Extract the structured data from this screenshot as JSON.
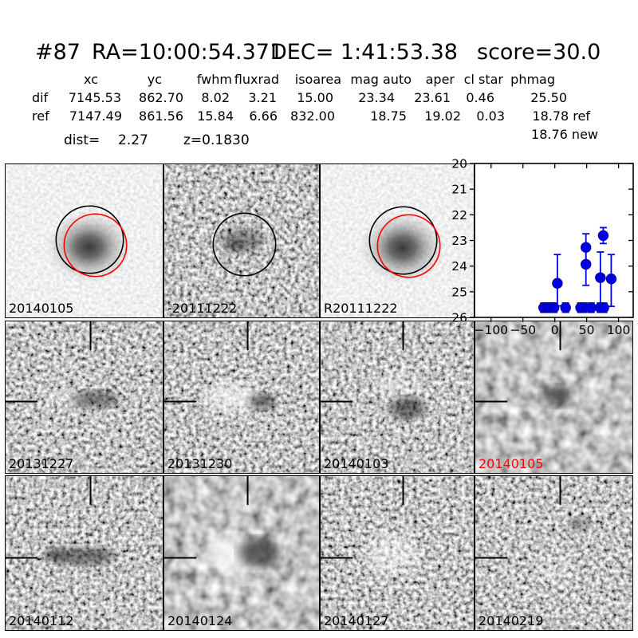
{
  "title": {
    "id": "#87",
    "ra": "RA=10:00:54.371",
    "dec": "DEC= 1:41:53.38",
    "score": "score=30.0"
  },
  "measurements": {
    "columns": [
      "xc",
      "yc",
      "fwhm",
      "fluxrad",
      "isoarea",
      "mag auto",
      "aper",
      "cl star",
      "phmag"
    ],
    "dif": {
      "label": "dif",
      "values": [
        "7145.53",
        "862.70",
        "8.02",
        "3.21",
        "15.00",
        "23.34",
        "23.61",
        "0.46",
        "25.50"
      ]
    },
    "ref": {
      "label": "ref",
      "values": [
        "7147.49",
        "861.56",
        "15.84",
        "6.66",
        "832.00",
        "18.75",
        "19.02",
        "0.03",
        "18.78 ref"
      ]
    },
    "phmag_new": "18.76 new",
    "dist_label": "dist=",
    "dist_value": "2.27",
    "redshift": "z=0.1830"
  },
  "grid": {
    "images": [
      {
        "label": "20140105",
        "label_color": "#000000",
        "kind": "new stamp with aperture circles"
      },
      {
        "label": "-20111222",
        "label_color": "#000000",
        "kind": "difference stamp with circle"
      },
      {
        "label": "R20111222",
        "label_color": "#000000",
        "kind": "reference stamp with aperture circles"
      },
      {
        "label": "20131227",
        "label_color": "#000000",
        "kind": "difference epoch stamp"
      },
      {
        "label": "20131230",
        "label_color": "#000000",
        "kind": "difference epoch stamp"
      },
      {
        "label": "20140103",
        "label_color": "#000000",
        "kind": "difference epoch stamp"
      },
      {
        "label": "20140105",
        "label_color": "#ff0000",
        "kind": "difference epoch stamp (selected)"
      },
      {
        "label": "20140112",
        "label_color": "#000000",
        "kind": "difference epoch stamp"
      },
      {
        "label": "20140124",
        "label_color": "#000000",
        "kind": "difference epoch stamp"
      },
      {
        "label": "20140127",
        "label_color": "#000000",
        "kind": "difference epoch stamp"
      },
      {
        "label": "20140219",
        "label_color": "#000000",
        "kind": "difference epoch stamp"
      }
    ],
    "circle_colors": {
      "aperture_black": "#000000",
      "aperture_red": "#ff0000"
    }
  },
  "chart_data": {
    "type": "scatter",
    "title": "",
    "xlabel": "",
    "ylabel": "",
    "legend": "none",
    "grid": "off",
    "xlim": [
      -126,
      123
    ],
    "ylim": [
      20,
      26
    ],
    "y_axis_inverted_display": "20 at top, 26 at bottom (magnitudes)",
    "xticks": [
      -100,
      -50,
      0,
      50,
      100
    ],
    "xtick_labels": [
      "−100",
      "−50",
      "0",
      "50",
      "100"
    ],
    "yticks": [
      20,
      21,
      22,
      23,
      24,
      25,
      26
    ],
    "ytick_labels": [
      "20",
      "21",
      "22",
      "23",
      "24",
      "25",
      "26"
    ],
    "marker_color": "#0000e0",
    "marker_edge": "#0000a0",
    "points": [
      {
        "x": -17.5,
        "y": 25.62,
        "t": 25.44,
        "b": 25.8
      },
      {
        "x": -11.9,
        "y": 25.62,
        "t": 25.44,
        "b": 25.8
      },
      {
        "x": -6.9,
        "y": 25.62,
        "t": 25.44,
        "b": 25.8
      },
      {
        "x": -1.3,
        "y": 25.62,
        "t": 25.44,
        "b": 25.8
      },
      {
        "x": 16.9,
        "y": 25.62,
        "t": 25.44,
        "b": 25.8
      },
      {
        "x": 40.5,
        "y": 25.62,
        "t": 25.44,
        "b": 25.8
      },
      {
        "x": 45.5,
        "y": 25.62,
        "t": 25.44,
        "b": 25.8
      },
      {
        "x": 57.0,
        "y": 25.62,
        "t": 25.44,
        "b": 25.8
      },
      {
        "x": 71.3,
        "y": 25.62,
        "t": 25.44,
        "b": 25.8
      },
      {
        "x": 76.9,
        "y": 25.62,
        "t": 25.44,
        "b": 25.8
      },
      {
        "x": 4.0,
        "y": 24.67,
        "t": 23.55,
        "b": 25.55
      },
      {
        "x": 48.8,
        "y": 23.27,
        "t": 22.74,
        "b": 23.95
      },
      {
        "x": 48.8,
        "y": 23.93,
        "t": 23.25,
        "b": 24.75
      },
      {
        "x": 71.5,
        "y": 24.45,
        "t": 23.45,
        "b": 25.55
      },
      {
        "x": 76.0,
        "y": 22.81,
        "t": 22.5,
        "b": 23.12
      },
      {
        "x": 88.5,
        "y": 24.5,
        "t": 23.55,
        "b": 25.57
      }
    ]
  }
}
